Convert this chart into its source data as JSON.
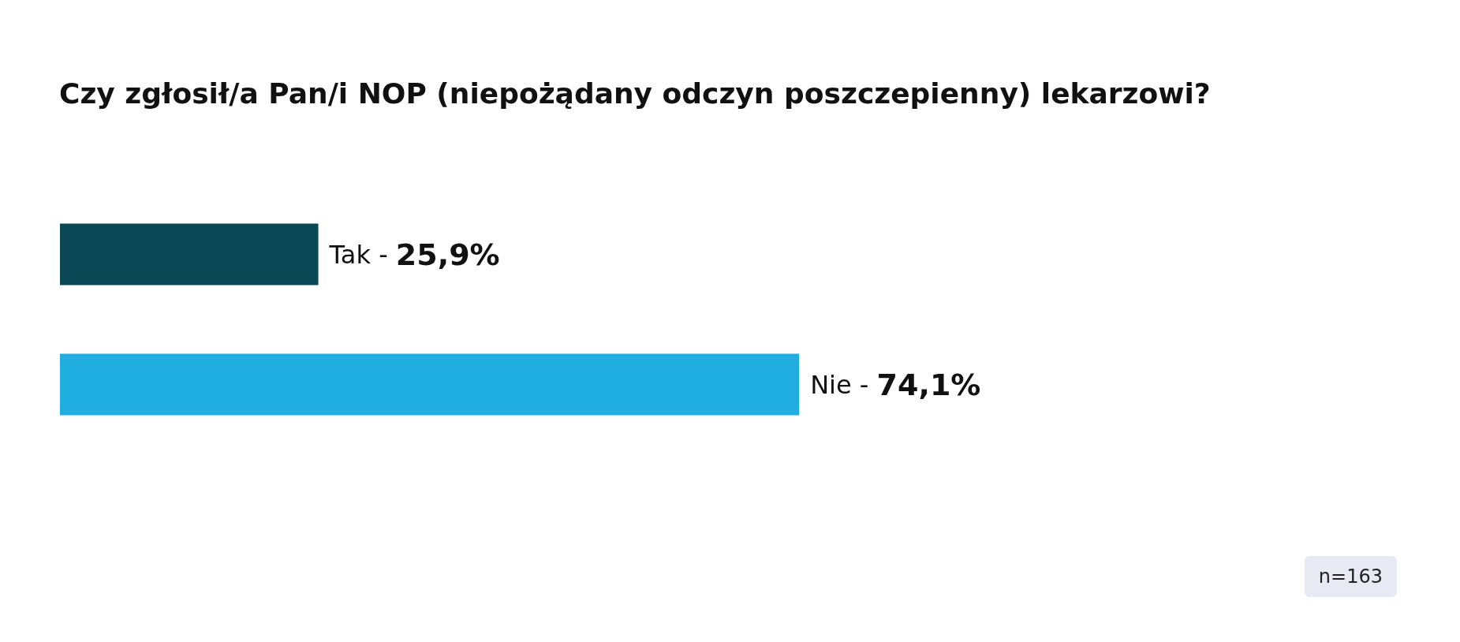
{
  "chart_data": {
    "type": "bar",
    "orientation": "horizontal",
    "title": "Czy zgłosił/a Pan/i NOP (niepożądany odczyn poszczepienny) lekarzowi?",
    "categories": [
      "Tak -",
      "Nie -"
    ],
    "values": [
      25.9,
      74.1
    ],
    "colors": [
      "#0b4755",
      "#20aee0"
    ],
    "value_labels": [
      "25,9%",
      "74,1%"
    ],
    "annotations": [
      "n=163"
    ],
    "grid": false
  }
}
